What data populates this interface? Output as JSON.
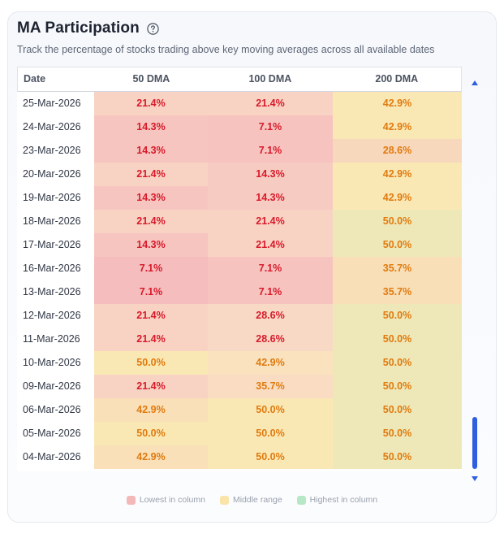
{
  "panel": {
    "title": "MA Participation",
    "subtitle": "Track the percentage of stocks trading above key moving averages across all available dates"
  },
  "table": {
    "headers": [
      "Date",
      "50 DMA",
      "100 DMA",
      "200 DMA"
    ],
    "rows": [
      {
        "date": "25-Mar-2026",
        "v": [
          "21.4%",
          "21.4%",
          "42.9%"
        ],
        "bg": [
          "#f8d3c3",
          "#f8d3c3",
          "#fae8b4"
        ],
        "fg": [
          "#d91a2b",
          "#d91a2b",
          "#e07b10"
        ]
      },
      {
        "date": "24-Mar-2026",
        "v": [
          "14.3%",
          "7.1%",
          "42.9%"
        ],
        "bg": [
          "#f6c5bf",
          "#f6c3bf",
          "#fae8b4"
        ],
        "fg": [
          "#d91a2b",
          "#d91a2b",
          "#e07b10"
        ]
      },
      {
        "date": "23-Mar-2026",
        "v": [
          "14.3%",
          "7.1%",
          "28.6%"
        ],
        "bg": [
          "#f6c5bf",
          "#f6c3bf",
          "#f8d8bc"
        ],
        "fg": [
          "#d91a2b",
          "#d91a2b",
          "#e07b10"
        ]
      },
      {
        "date": "20-Mar-2026",
        "v": [
          "21.4%",
          "14.3%",
          "42.9%"
        ],
        "bg": [
          "#f8d3c3",
          "#f6cbc1",
          "#fae8b4"
        ],
        "fg": [
          "#d91a2b",
          "#d91a2b",
          "#e07b10"
        ]
      },
      {
        "date": "19-Mar-2026",
        "v": [
          "14.3%",
          "14.3%",
          "42.9%"
        ],
        "bg": [
          "#f6c5bf",
          "#f6cbc1",
          "#fae8b4"
        ],
        "fg": [
          "#d91a2b",
          "#d91a2b",
          "#e07b10"
        ]
      },
      {
        "date": "18-Mar-2026",
        "v": [
          "21.4%",
          "21.4%",
          "50.0%"
        ],
        "bg": [
          "#f8d3c3",
          "#f8d3c3",
          "#eee8b8"
        ],
        "fg": [
          "#d91a2b",
          "#d91a2b",
          "#e07b10"
        ]
      },
      {
        "date": "17-Mar-2026",
        "v": [
          "14.3%",
          "21.4%",
          "50.0%"
        ],
        "bg": [
          "#f6c5bf",
          "#f8d3c3",
          "#eee8b8"
        ],
        "fg": [
          "#d91a2b",
          "#d91a2b",
          "#e07b10"
        ]
      },
      {
        "date": "16-Mar-2026",
        "v": [
          "7.1%",
          "7.1%",
          "35.7%"
        ],
        "bg": [
          "#f5bdbd",
          "#f6c3bf",
          "#f9dfb7"
        ],
        "fg": [
          "#d91a2b",
          "#d91a2b",
          "#e07b10"
        ]
      },
      {
        "date": "13-Mar-2026",
        "v": [
          "7.1%",
          "7.1%",
          "35.7%"
        ],
        "bg": [
          "#f5bdbd",
          "#f6c3bf",
          "#f9dfb7"
        ],
        "fg": [
          "#d91a2b",
          "#d91a2b",
          "#e07b10"
        ]
      },
      {
        "date": "12-Mar-2026",
        "v": [
          "21.4%",
          "28.6%",
          "50.0%"
        ],
        "bg": [
          "#f8d3c3",
          "#f8d9c5",
          "#eee8b8"
        ],
        "fg": [
          "#d91a2b",
          "#d91a2b",
          "#e07b10"
        ]
      },
      {
        "date": "11-Mar-2026",
        "v": [
          "21.4%",
          "28.6%",
          "50.0%"
        ],
        "bg": [
          "#f8d3c3",
          "#f8d9c5",
          "#eee8b8"
        ],
        "fg": [
          "#d91a2b",
          "#d91a2b",
          "#e07b10"
        ]
      },
      {
        "date": "10-Mar-2026",
        "v": [
          "50.0%",
          "42.9%",
          "50.0%"
        ],
        "bg": [
          "#fae8b4",
          "#f9e2bd",
          "#eee8b8"
        ],
        "fg": [
          "#e07b10",
          "#e07b10",
          "#e07b10"
        ]
      },
      {
        "date": "09-Mar-2026",
        "v": [
          "21.4%",
          "35.7%",
          "50.0%"
        ],
        "bg": [
          "#f8d3c3",
          "#f9dcc1",
          "#eee8b8"
        ],
        "fg": [
          "#d91a2b",
          "#e07b10",
          "#e07b10"
        ]
      },
      {
        "date": "06-Mar-2026",
        "v": [
          "42.9%",
          "50.0%",
          "50.0%"
        ],
        "bg": [
          "#f9e0b8",
          "#fae8b4",
          "#eee8b8"
        ],
        "fg": [
          "#e07b10",
          "#e07b10",
          "#e07b10"
        ]
      },
      {
        "date": "05-Mar-2026",
        "v": [
          "50.0%",
          "50.0%",
          "50.0%"
        ],
        "bg": [
          "#fae8b4",
          "#fae8b4",
          "#eee8b8"
        ],
        "fg": [
          "#e07b10",
          "#e07b10",
          "#e07b10"
        ]
      },
      {
        "date": "04-Mar-2026",
        "v": [
          "42.9%",
          "50.0%",
          "50.0%"
        ],
        "bg": [
          "#f9e0b8",
          "#fae8b4",
          "#eee8b8"
        ],
        "fg": [
          "#e07b10",
          "#e07b10",
          "#e07b10"
        ]
      }
    ]
  },
  "legend": [
    {
      "label": "Lowest in column",
      "color": "#f5b8b8"
    },
    {
      "label": "Middle range",
      "color": "#fae4a8"
    },
    {
      "label": "Highest in column",
      "color": "#b7e8c6"
    }
  ],
  "icons": {
    "help": "question-circle-icon",
    "scroll_up": "scroll-up-arrow-icon",
    "scroll_down": "scroll-down-arrow-icon"
  },
  "colors": {
    "scroll_accent": "#2f5fe0"
  }
}
